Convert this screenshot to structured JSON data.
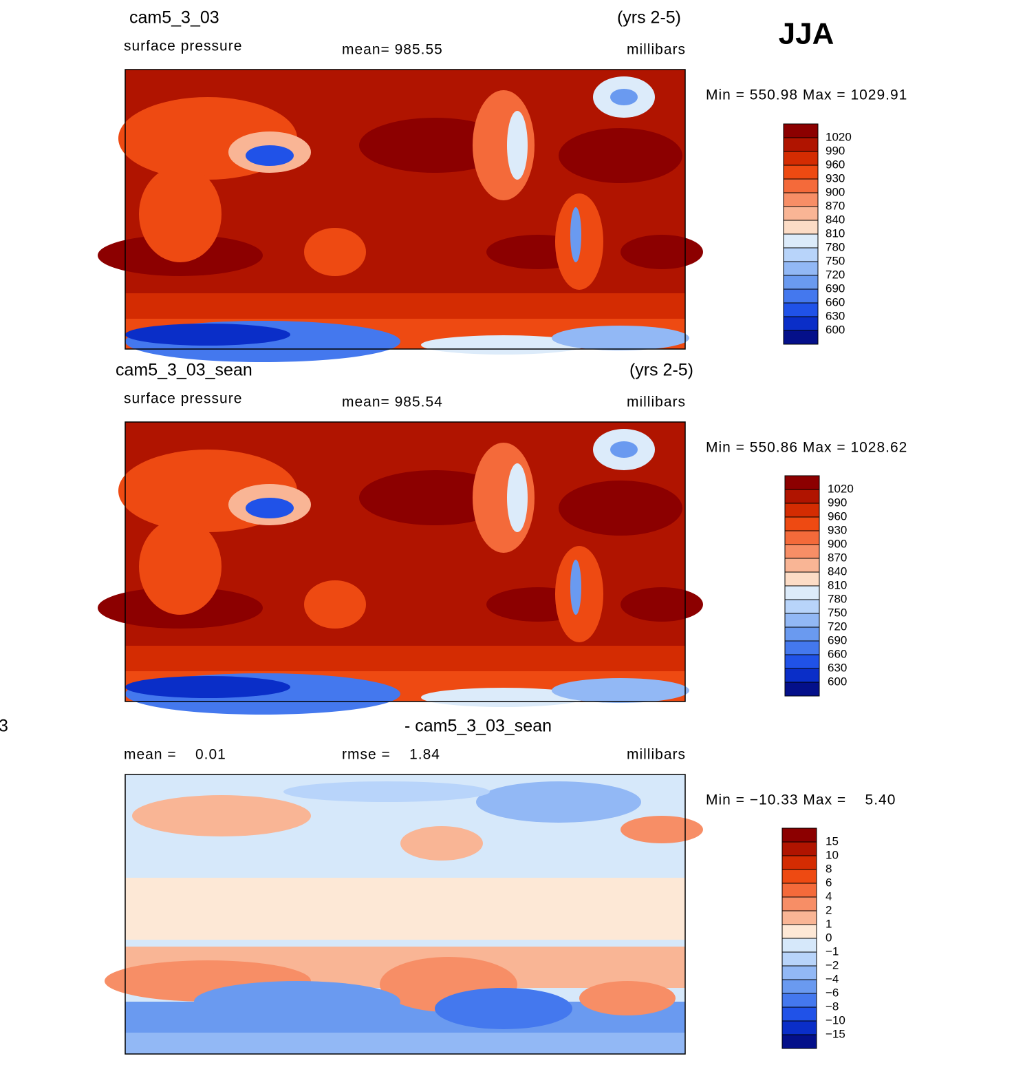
{
  "season": "JJA",
  "panels": [
    {
      "case": "cam5_3_03",
      "years": "(yrs 2-5)",
      "variable": "surface pressure",
      "mean": "mean= 985.55",
      "units": "millibars",
      "range": "Min = 550.98 Max = 1029.91",
      "colorbar": {
        "labels": [
          "1020",
          "990",
          "960",
          "930",
          "900",
          "870",
          "840",
          "810",
          "780",
          "750",
          "720",
          "690",
          "660",
          "630",
          "600"
        ],
        "colors": [
          "#8c0000",
          "#b01400",
          "#d42c02",
          "#ee4a12",
          "#f46a3a",
          "#f78e66",
          "#f9b595",
          "#fcdcc6",
          "#dcebfa",
          "#b8d4fa",
          "#92b8f5",
          "#6a9af0",
          "#4478ee",
          "#2052e8",
          "#0a2ec8",
          "#04108a"
        ]
      }
    },
    {
      "case": "cam5_3_03_sean",
      "years": "(yrs 2-5)",
      "variable": "surface pressure",
      "mean": "mean= 985.54",
      "units": "millibars",
      "range": "Min = 550.86 Max = 1028.62",
      "colorbar": {
        "labels": [
          "1020",
          "990",
          "960",
          "930",
          "900",
          "870",
          "840",
          "810",
          "780",
          "750",
          "720",
          "690",
          "660",
          "630",
          "600"
        ],
        "colors": [
          "#8c0000",
          "#b01400",
          "#d42c02",
          "#ee4a12",
          "#f46a3a",
          "#f78e66",
          "#f9b595",
          "#fcdcc6",
          "#dcebfa",
          "#b8d4fa",
          "#92b8f5",
          "#6a9af0",
          "#4478ee",
          "#2052e8",
          "#0a2ec8",
          "#04108a"
        ]
      }
    },
    {
      "case_cut": "3",
      "case": "- cam5_3_03_sean",
      "mean": "mean =    0.01",
      "rmse": "rmse =    1.84",
      "units": "millibars",
      "range": "Min = −10.33 Max =    5.40",
      "colorbar": {
        "labels": [
          "15",
          "10",
          "8",
          "6",
          "4",
          "2",
          "1",
          "0",
          "−1",
          "−2",
          "−4",
          "−6",
          "−8",
          "−10",
          "−15"
        ],
        "colors": [
          "#8c0000",
          "#b01400",
          "#d42c02",
          "#ee4a12",
          "#f46a3a",
          "#f78e66",
          "#f9b595",
          "#fde8d6",
          "#d6e8fa",
          "#b8d4fa",
          "#92b8f5",
          "#6a9af0",
          "#4478ee",
          "#2052e8",
          "#0a2ec8",
          "#04108a"
        ]
      }
    }
  ]
}
